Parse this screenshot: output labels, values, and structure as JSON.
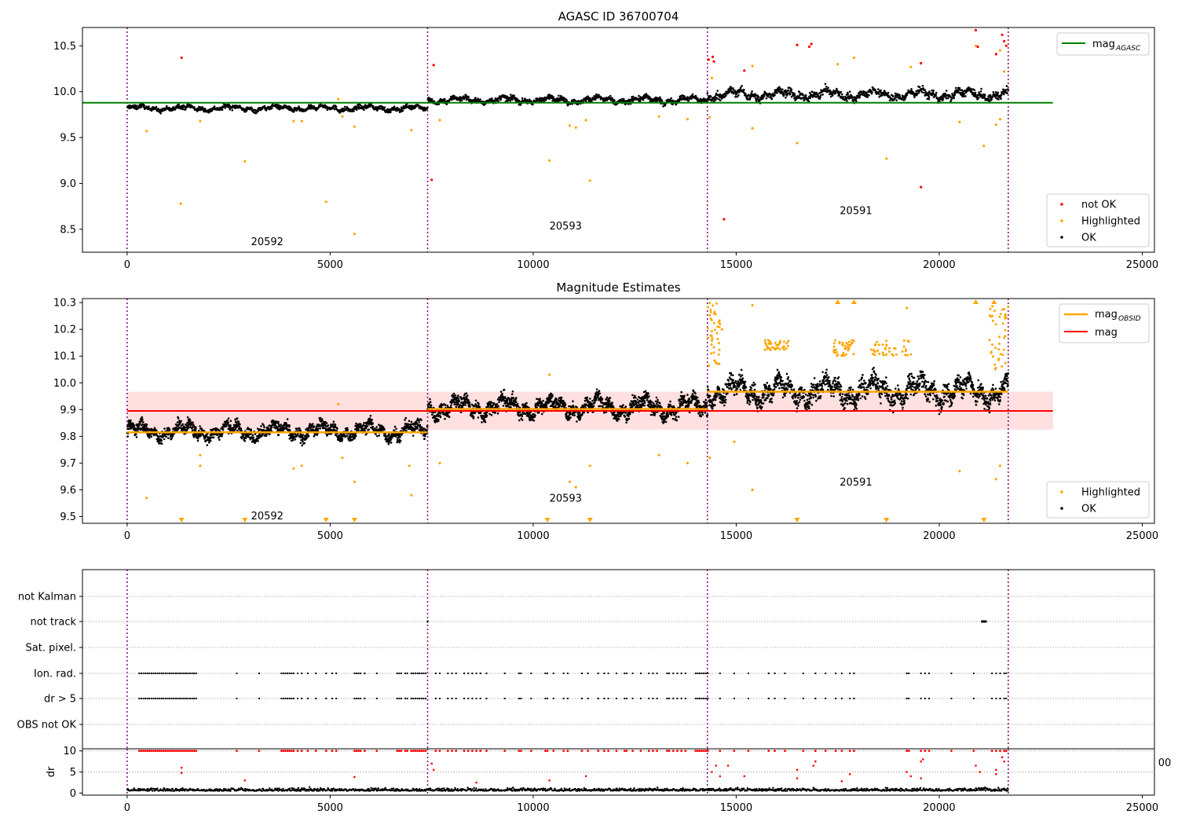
{
  "chart_data": [
    {
      "type": "scatter",
      "title": "AGASC ID 36700704",
      "xlim": [
        -1100,
        25300
      ],
      "ylim": [
        8.25,
        10.7
      ],
      "xticks": [
        0,
        5000,
        10000,
        15000,
        20000,
        25000
      ],
      "yticks": [
        8.5,
        9.0,
        9.5,
        10.0,
        10.5
      ],
      "yticks_labels": [
        "8.5",
        "9.0",
        "9.5",
        "10.0",
        "10.5"
      ],
      "obs_boundaries": [
        0,
        7400,
        14290,
        21700
      ],
      "obsid_labels": [
        {
          "text": "20592",
          "x": 3450,
          "y": 8.37
        },
        {
          "text": "20593",
          "x": 10800,
          "y": 8.54
        },
        {
          "text": "20591",
          "x": 17950,
          "y": 8.71
        }
      ],
      "lines": [
        {
          "name": "mag_AGASC",
          "x": [
            -1100,
            22800
          ],
          "y": [
            9.88,
            9.88
          ],
          "color": "#008000"
        }
      ],
      "series_ok": [
        {
          "x_range": [
            0,
            7400
          ],
          "mean": 9.82,
          "spread": 0.05
        },
        {
          "x_range": [
            7400,
            14290
          ],
          "mean": 9.91,
          "spread": 0.06
        },
        {
          "x_range": [
            14290,
            21700
          ],
          "mean": 9.97,
          "spread": 0.09
        }
      ],
      "highlighted": [
        [
          480,
          9.57
        ],
        [
          1320,
          8.78
        ],
        [
          1800,
          9.68
        ],
        [
          2900,
          9.24
        ],
        [
          4100,
          9.68
        ],
        [
          4300,
          9.68
        ],
        [
          4900,
          8.8
        ],
        [
          5200,
          9.92
        ],
        [
          5300,
          9.73
        ],
        [
          5600,
          8.45
        ],
        [
          5600,
          9.62
        ],
        [
          7000,
          9.58
        ],
        [
          7700,
          9.69
        ],
        [
          10400,
          9.25
        ],
        [
          10900,
          9.63
        ],
        [
          11050,
          9.61
        ],
        [
          11400,
          9.03
        ],
        [
          11300,
          9.69
        ],
        [
          13100,
          9.73
        ],
        [
          13800,
          9.7
        ],
        [
          14350,
          9.72
        ],
        [
          14400,
          10.15
        ],
        [
          15400,
          10.28
        ],
        [
          15400,
          9.6
        ],
        [
          16500,
          9.44
        ],
        [
          17500,
          10.3
        ],
        [
          17900,
          10.37
        ],
        [
          18700,
          9.27
        ],
        [
          19300,
          10.27
        ],
        [
          20500,
          9.67
        ],
        [
          20900,
          10.5
        ],
        [
          21100,
          9.41
        ],
        [
          21400,
          9.64
        ],
        [
          21500,
          9.7
        ],
        [
          21500,
          10.45
        ],
        [
          21600,
          10.22
        ]
      ],
      "not_ok": [
        [
          1340,
          10.37
        ],
        [
          7550,
          10.29
        ],
        [
          7500,
          9.04
        ],
        [
          14320,
          10.35
        ],
        [
          14420,
          10.38
        ],
        [
          14450,
          10.33
        ],
        [
          14700,
          8.61
        ],
        [
          15200,
          10.23
        ],
        [
          16500,
          10.51
        ],
        [
          16800,
          10.49
        ],
        [
          16850,
          10.52
        ],
        [
          19550,
          10.31
        ],
        [
          19550,
          8.96
        ],
        [
          20900,
          10.67
        ],
        [
          20950,
          10.49
        ],
        [
          21400,
          10.41
        ],
        [
          21550,
          10.62
        ],
        [
          21600,
          10.55
        ],
        [
          21650,
          10.5
        ]
      ],
      "legend": {
        "entries": [
          "not OK",
          "Highlighted",
          "OK"
        ],
        "placement": "lower-right"
      },
      "line_legend": {
        "entries": [
          "mag",
          "AGASC"
        ],
        "placement": "upper-right"
      },
      "xticklabels": [
        "0",
        "5000",
        "10000",
        "15000",
        "20000",
        "25000"
      ]
    },
    {
      "type": "scatter",
      "title": "Magnitude Estimates",
      "xlim": [
        -1100,
        25300
      ],
      "ylim": [
        9.475,
        10.315
      ],
      "yticks": [
        9.5,
        9.6,
        9.7,
        9.8,
        9.9,
        10.0,
        10.1,
        10.2,
        10.3
      ],
      "yticks_labels": [
        "9.5",
        "9.6",
        "9.7",
        "9.8",
        "9.9",
        "10.0",
        "10.1",
        "10.2",
        "10.3"
      ],
      "obsid_labels": [
        {
          "text": "20592",
          "x": 3450,
          "y": 9.505
        },
        {
          "text": "20593",
          "x": 10800,
          "y": 9.57
        },
        {
          "text": "20591",
          "x": 17950,
          "y": 9.63
        }
      ],
      "mag": 9.895,
      "mag_band": [
        9.825,
        9.967
      ],
      "mag_obsid": [
        {
          "x_range": [
            0,
            7400
          ],
          "value": 9.815
        },
        {
          "x_range": [
            7400,
            14290
          ],
          "value": 9.902
        },
        {
          "x_range": [
            14290,
            21700
          ],
          "value": 9.967
        }
      ],
      "series_ok": [
        {
          "x_range": [
            0,
            7400
          ],
          "mean": 9.82,
          "spread": 0.05
        },
        {
          "x_range": [
            7400,
            14290
          ],
          "mean": 9.91,
          "spread": 0.06
        },
        {
          "x_range": [
            14290,
            21700
          ],
          "mean": 9.97,
          "spread": 0.08
        }
      ],
      "highlighted": [
        [
          480,
          9.57
        ],
        [
          1800,
          9.69
        ],
        [
          1800,
          9.73
        ],
        [
          4100,
          9.68
        ],
        [
          4300,
          9.69
        ],
        [
          5200,
          9.92
        ],
        [
          5300,
          9.72
        ],
        [
          5600,
          9.63
        ],
        [
          7000,
          9.58
        ],
        [
          6950,
          9.69
        ],
        [
          7700,
          9.7
        ],
        [
          10400,
          10.03
        ],
        [
          10900,
          9.63
        ],
        [
          11050,
          9.61
        ],
        [
          11400,
          9.69
        ],
        [
          13100,
          9.73
        ],
        [
          13800,
          9.7
        ],
        [
          14350,
          9.72
        ],
        [
          14950,
          9.78
        ],
        [
          15400,
          10.29
        ],
        [
          15400,
          9.6
        ],
        [
          20500,
          9.67
        ],
        [
          21400,
          9.64
        ],
        [
          21500,
          9.69
        ],
        [
          14600,
          10.22
        ],
        [
          14650,
          10.2
        ],
        [
          19200,
          10.28
        ]
      ],
      "highlight_bands": [
        [
          14300,
          14600,
          10.05,
          10.3
        ],
        [
          15700,
          16300,
          10.12,
          10.16
        ],
        [
          17400,
          17900,
          10.1,
          10.16
        ],
        [
          18300,
          19300,
          10.1,
          10.16
        ],
        [
          21200,
          21700,
          10.05,
          10.3
        ]
      ],
      "below_axis_markers": [
        1340,
        2900,
        4900,
        5600,
        10350,
        11400,
        16500,
        18700,
        21100
      ],
      "above_axis_markers": [
        17500,
        17900,
        20900,
        21350
      ],
      "legend_points": {
        "entries": [
          "Highlighted",
          "OK"
        ],
        "placement": "lower-right"
      },
      "legend_lines": {
        "entries": [
          "mag",
          "OBSID",
          "mag"
        ],
        "placement": "upper-right"
      },
      "xticklabels": [
        "0",
        "5000",
        "10000",
        "15000",
        "20000",
        "25000"
      ]
    },
    {
      "type": "scatter",
      "title": "",
      "xlim": [
        -1100,
        25300
      ],
      "flag_rows": [
        "not Kalman",
        "not track",
        "Sat. pixel.",
        "Ion. rad.",
        "dr > 5",
        "OBS not OK"
      ],
      "flag_events": [
        300,
        350,
        400,
        450,
        500,
        550,
        600,
        650,
        700,
        750,
        800,
        850,
        900,
        950,
        1000,
        1050,
        1100,
        1150,
        1200,
        1250,
        1300,
        1350,
        1400,
        1450,
        1500,
        1550,
        1600,
        1650,
        1700,
        2700,
        3250,
        3800,
        3850,
        3900,
        3950,
        4000,
        4050,
        4100,
        4200,
        4300,
        4450,
        4650,
        4900,
        5050,
        5150,
        5600,
        5650,
        5700,
        5750,
        5850,
        6150,
        6650,
        6700,
        6750,
        6850,
        6900,
        7000,
        7050,
        7100,
        7150,
        7200,
        7250,
        7300,
        7350,
        7600,
        7700,
        7900,
        8000,
        8100,
        8300,
        8400,
        8500,
        8600,
        8700,
        8850,
        9300,
        9650,
        9700,
        9950,
        10300,
        10350,
        10500,
        10750,
        10850,
        11200,
        11350,
        11600,
        11750,
        11850,
        12050,
        12250,
        12300,
        12450,
        12650,
        12850,
        12950,
        13050,
        13300,
        13350,
        13450,
        13550,
        13650,
        13750,
        14000,
        14050,
        14100,
        14150,
        14200,
        14250,
        14300,
        14600,
        14950,
        15300,
        15800,
        15950,
        16200,
        16650,
        16950,
        17200,
        17450,
        17600,
        17800,
        17900,
        19200,
        19250,
        19550,
        19650,
        19750,
        20300,
        20850,
        21300,
        21400,
        21500,
        21600,
        21650
      ],
      "not_track_events": [
        [
          7400,
          7400
        ],
        [
          21050,
          21150
        ]
      ],
      "xticklabels": [
        "0",
        "5000",
        "10000",
        "15000",
        "20000",
        "25000"
      ]
    },
    {
      "type": "scatter",
      "title": "",
      "xlim": [
        -1100,
        25300
      ],
      "ylim": [
        -0.5,
        10.5
      ],
      "yticks": [
        0,
        5,
        10
      ],
      "yticks_labels": [
        "0",
        "5",
        "10"
      ],
      "ylabel": "dr",
      "dr_baseline": {
        "x_range": [
          0,
          21700
        ],
        "mean": 0.8,
        "spread": 0.6
      },
      "dr_outliers": [
        [
          1340,
          6.0
        ],
        [
          1340,
          4.8
        ],
        [
          2900,
          3.0
        ],
        [
          5600,
          3.8
        ],
        [
          7550,
          5.5
        ],
        [
          7500,
          7.0
        ],
        [
          8600,
          2.5
        ],
        [
          10400,
          3.0
        ],
        [
          11300,
          4.0
        ],
        [
          14400,
          5.0
        ],
        [
          14500,
          6.5
        ],
        [
          14600,
          4.0
        ],
        [
          14800,
          6.5
        ],
        [
          15200,
          4.0
        ],
        [
          16500,
          5.5
        ],
        [
          16500,
          3.5
        ],
        [
          16900,
          6.5
        ],
        [
          16950,
          7.5
        ],
        [
          17600,
          2.8
        ],
        [
          17800,
          4.5
        ],
        [
          19200,
          5.0
        ],
        [
          19300,
          4.0
        ],
        [
          19550,
          3.5
        ],
        [
          19550,
          7.5
        ],
        [
          19600,
          8.0
        ],
        [
          20900,
          6.5
        ],
        [
          21000,
          5.0
        ],
        [
          21400,
          5.5
        ],
        [
          21400,
          4.5
        ],
        [
          21550,
          8.5
        ],
        [
          21600,
          7.5
        ]
      ],
      "xticks": [
        0,
        5000,
        10000,
        15000,
        20000,
        25000
      ],
      "xticklabels": [
        "0",
        "5000",
        "10000",
        "15000",
        "20000",
        "25000"
      ],
      "clipped_tick_label": "00"
    }
  ]
}
